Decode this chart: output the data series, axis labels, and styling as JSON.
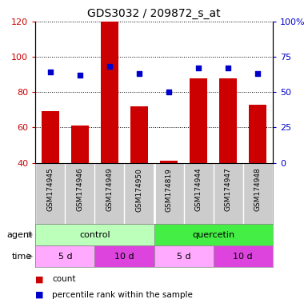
{
  "title": "GDS3032 / 209872_s_at",
  "samples": [
    "GSM174945",
    "GSM174946",
    "GSM174949",
    "GSM174950",
    "GSM174819",
    "GSM174944",
    "GSM174947",
    "GSM174948"
  ],
  "counts": [
    69,
    61,
    120,
    72,
    41,
    88,
    88,
    73
  ],
  "percentile_ranks": [
    64,
    62,
    68,
    63,
    50,
    67,
    67,
    63
  ],
  "ylim_left": [
    40,
    120
  ],
  "ylim_right": [
    0,
    100
  ],
  "yticks_left": [
    40,
    60,
    80,
    100,
    120
  ],
  "yticks_right": [
    0,
    25,
    50,
    75,
    100
  ],
  "ytick_labels_left": [
    "40",
    "60",
    "80",
    "100",
    "120"
  ],
  "ytick_labels_right": [
    "0",
    "25",
    "50",
    "75",
    "100%"
  ],
  "bar_color": "#cc0000",
  "dot_color": "#0000cc",
  "agent_groups": [
    {
      "label": "control",
      "start": 0,
      "end": 4,
      "color": "#bbffbb"
    },
    {
      "label": "quercetin",
      "start": 4,
      "end": 8,
      "color": "#44ee44"
    }
  ],
  "time_groups": [
    {
      "label": "5 d",
      "start": 0,
      "end": 2,
      "color": "#ffaaff"
    },
    {
      "label": "10 d",
      "start": 2,
      "end": 4,
      "color": "#dd44dd"
    },
    {
      "label": "5 d",
      "start": 4,
      "end": 6,
      "color": "#ffaaff"
    },
    {
      "label": "10 d",
      "start": 6,
      "end": 8,
      "color": "#dd44dd"
    }
  ],
  "left_axis_color": "#cc0000",
  "right_axis_color": "#0000cc",
  "figsize": [
    3.85,
    3.84
  ],
  "dpi": 100
}
